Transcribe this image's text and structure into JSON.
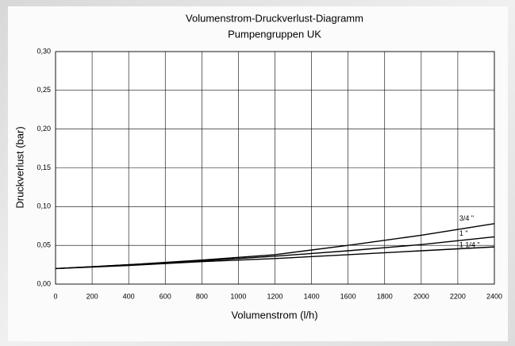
{
  "chart_data": {
    "type": "line",
    "title": "Volumenstrom-Druckverlust-Diagramm",
    "subtitle": "Pumpengruppen UK",
    "x_label": "Volumenstrom (l/h)",
    "y_label": "Druckverlust (bar)",
    "x": [
      0,
      400,
      800,
      1200,
      1600,
      2000,
      2400
    ],
    "series": [
      {
        "name": "3/4 \"",
        "color": "#000000",
        "values": [
          0.02,
          0.025,
          0.031,
          0.038,
          0.05,
          0.063,
          0.078
        ]
      },
      {
        "name": "1 \"",
        "color": "#000000",
        "values": [
          0.02,
          0.025,
          0.03,
          0.036,
          0.043,
          0.051,
          0.061
        ]
      },
      {
        "name": "1 1/4 \"",
        "color": "#000000",
        "values": [
          0.02,
          0.024,
          0.029,
          0.033,
          0.038,
          0.043,
          0.048
        ]
      }
    ],
    "xlim": [
      0,
      2400
    ],
    "xticks": [
      0,
      200,
      400,
      600,
      800,
      1000,
      1200,
      1400,
      1600,
      1800,
      2000,
      2200,
      2400
    ],
    "ylim": [
      0,
      0.3
    ],
    "yticks": [
      {
        "value": 0,
        "label": "0,00"
      },
      {
        "value": 0.05,
        "label": "0,05"
      },
      {
        "value": 0.1,
        "label": "0,10"
      },
      {
        "value": 0.15,
        "label": "0,15"
      },
      {
        "value": 0.2,
        "label": "0,20"
      },
      {
        "value": 0.25,
        "label": "0,25"
      },
      {
        "value": 0.3,
        "label": "0,30"
      }
    ],
    "grid": true
  }
}
